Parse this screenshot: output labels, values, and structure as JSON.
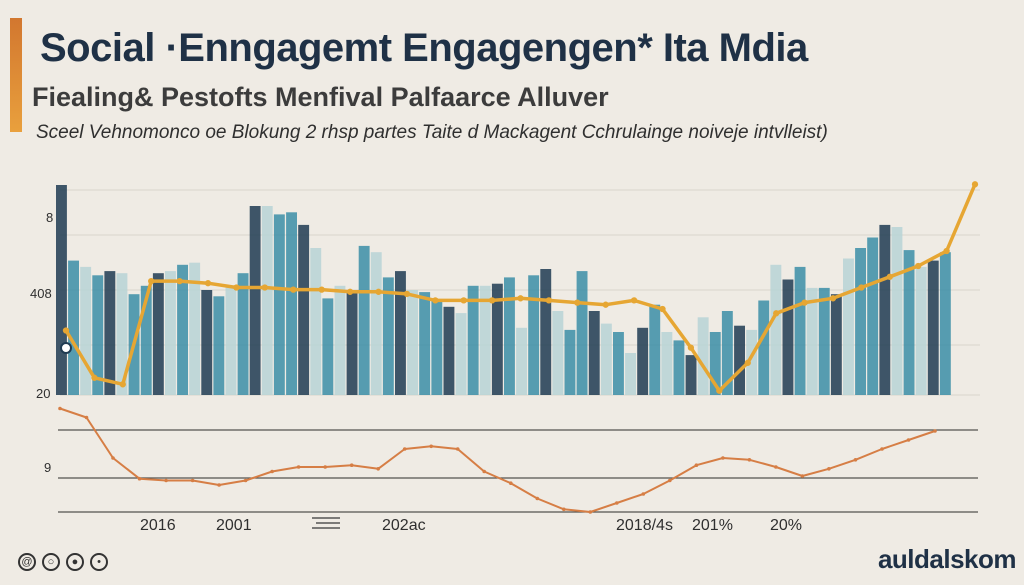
{
  "header": {
    "title": "Social ·Enngagemt Engagengen* Ita Mdia",
    "subtitle": "Fiealing& Pestofts Menfival Palfaarce Alluver",
    "caption": "Sceel Vehnomonco oe Blokung 2 rhsp partes Taite d Mackagent Cchrulainge noiveje intvlleist)"
  },
  "brand": {
    "name": "auldalskom"
  },
  "footer": {
    "icons": [
      "spiral-icon",
      "ring-icon",
      "bullet-icon",
      "dot-icon"
    ]
  },
  "chart_data": {
    "type": "bar",
    "title": "Social ·Enngagemt Engagengen* Ita Mdia",
    "xlabel": "",
    "ylabel": "",
    "y_tick_labels": [
      "8",
      "408",
      "20",
      "9"
    ],
    "x_tick_labels": [
      "2016",
      "2001",
      "202ac",
      "2018/4s",
      "201%",
      "20%"
    ],
    "grid": true,
    "colors": {
      "bar_dark": "#1f3b52",
      "bar_mid": "#3b8ea7",
      "bar_light": "#b7d3d6",
      "upper_line": "#e6a633",
      "lower_line": "#d67e45"
    },
    "bars": {
      "ylim": [
        0,
        100
      ],
      "values": [
        100,
        64,
        61,
        57,
        59,
        58,
        48,
        52,
        58,
        59,
        62,
        63,
        50,
        47,
        52,
        58,
        90,
        90,
        86,
        87,
        81,
        70,
        46,
        52,
        50,
        71,
        68,
        56,
        59,
        50,
        49,
        45,
        42,
        39,
        52,
        52,
        53,
        56,
        32,
        57,
        60,
        40,
        31,
        59,
        40,
        34,
        30,
        20,
        32,
        43,
        30,
        26,
        19,
        37,
        30,
        40,
        33,
        31,
        45,
        62,
        55,
        61,
        51,
        51,
        48,
        65,
        70,
        75,
        81,
        80,
        69,
        61,
        64,
        68
      ]
    },
    "series": [
      {
        "values": [
          30,
          8,
          5,
          53,
          53,
          52,
          50,
          50,
          49,
          49,
          48,
          48,
          47,
          44,
          44,
          44,
          45,
          44,
          43,
          42,
          44,
          40,
          22,
          2,
          15,
          38,
          43,
          45,
          50,
          55,
          60,
          67,
          98
        ]
      },
      {
        "values": [
          -15,
          -25,
          -70,
          -93,
          -95,
          -95,
          -100,
          -95,
          -85,
          -80,
          -80,
          -78,
          -82,
          -60,
          -57,
          -60,
          -85,
          -98,
          -115,
          -127,
          -130,
          -120,
          -110,
          -95,
          -78,
          -70,
          -72,
          -80,
          -90,
          -82,
          -72,
          -60,
          -50,
          -40
        ]
      }
    ]
  }
}
